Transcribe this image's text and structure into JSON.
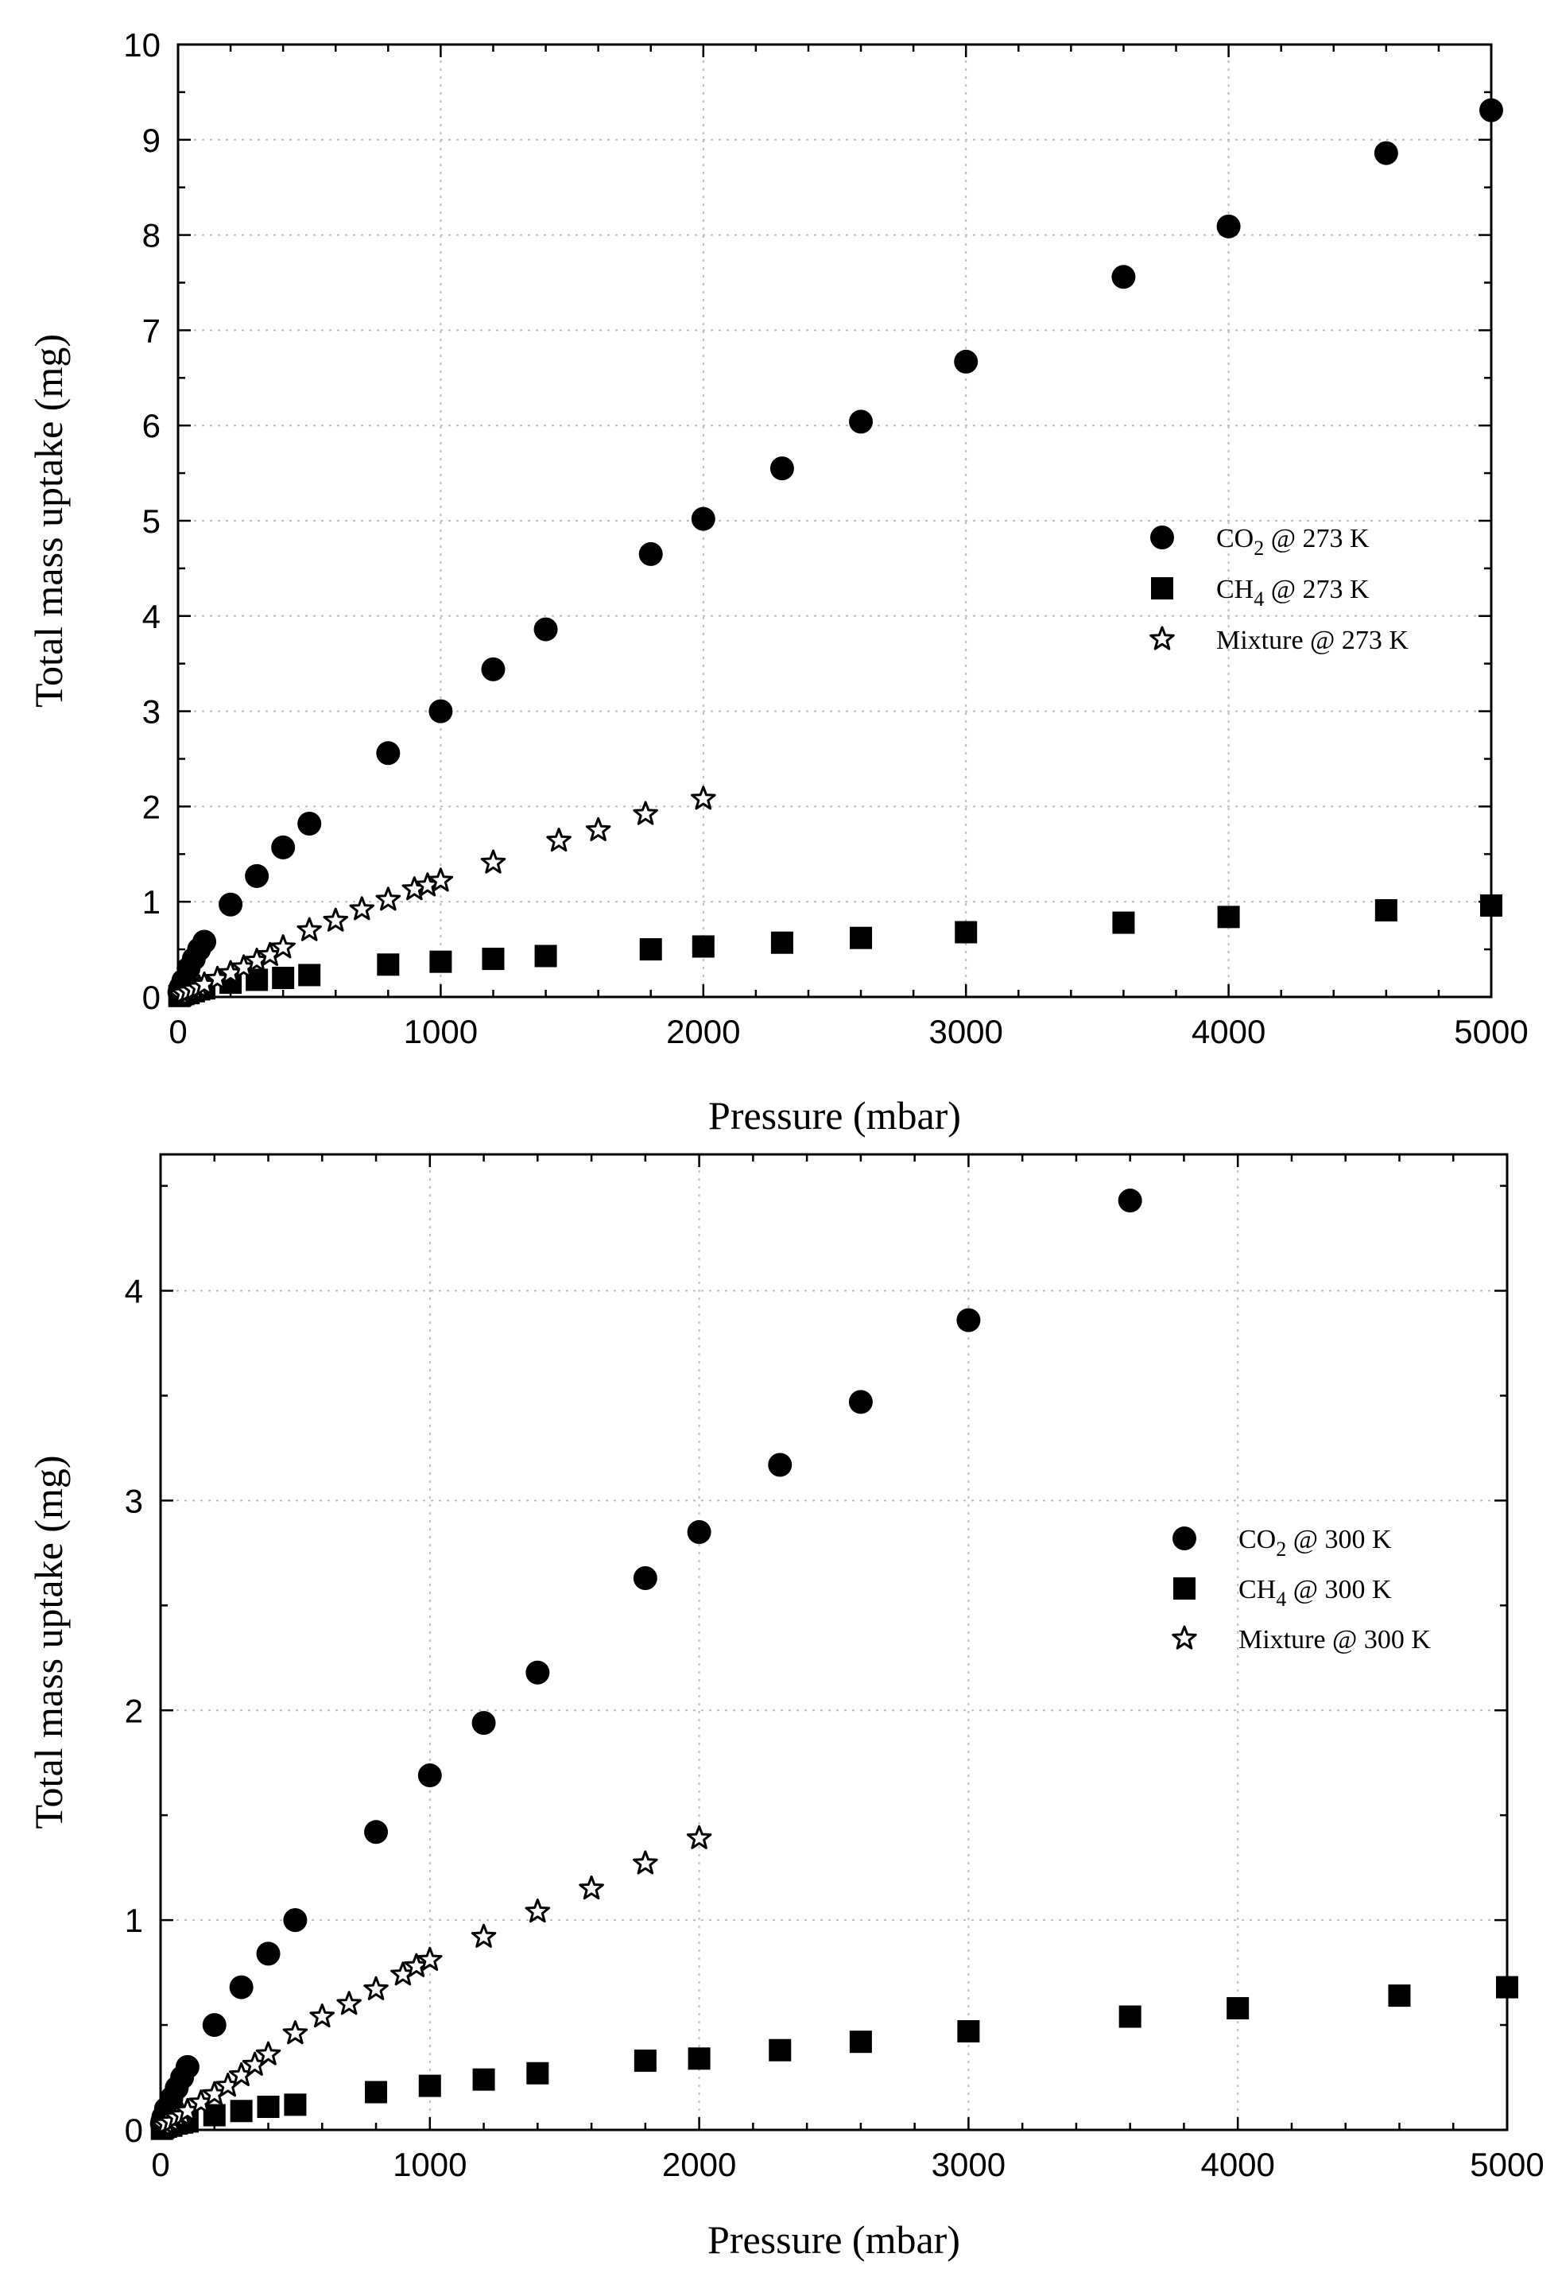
{
  "chart_data": [
    {
      "type": "scatter",
      "xlabel": "Pressure (mbar)",
      "ylabel": "Total mass uptake (mg)",
      "xlim": [
        0,
        5000
      ],
      "ylim": [
        0,
        10
      ],
      "xticks": [
        0,
        1000,
        2000,
        3000,
        4000,
        5000
      ],
      "yticks": [
        0,
        1,
        2,
        3,
        4,
        5,
        6,
        7,
        8,
        9,
        10
      ],
      "grid": true,
      "legend_position": "right-middle",
      "series": [
        {
          "name": "CO2 @ 273 K",
          "label_main": "CO",
          "label_sub": "2",
          "label_rest": " @ 273 K",
          "marker": "circle",
          "x": [
            5,
            10,
            20,
            40,
            60,
            80,
            100,
            200,
            300,
            400,
            500,
            800,
            1000,
            1200,
            1400,
            1800,
            2000,
            2300,
            2600,
            3000,
            3600,
            4000,
            4600,
            5000
          ],
          "y": [
            0.05,
            0.1,
            0.17,
            0.3,
            0.4,
            0.5,
            0.58,
            0.97,
            1.27,
            1.57,
            1.82,
            2.56,
            3.0,
            3.44,
            3.86,
            4.65,
            5.02,
            5.55,
            6.04,
            6.67,
            7.56,
            8.09,
            8.86,
            9.31
          ]
        },
        {
          "name": "CH4 @ 273 K",
          "label_main": "CH",
          "label_sub": "4",
          "label_rest": " @ 273 K",
          "marker": "square",
          "x": [
            5,
            10,
            20,
            40,
            60,
            80,
            100,
            200,
            300,
            400,
            500,
            800,
            1000,
            1200,
            1400,
            1800,
            2000,
            2300,
            2600,
            3000,
            3600,
            4000,
            4600,
            5000
          ],
          "y": [
            0.01,
            0.02,
            0.03,
            0.04,
            0.06,
            0.08,
            0.09,
            0.15,
            0.18,
            0.2,
            0.23,
            0.34,
            0.37,
            0.4,
            0.43,
            0.5,
            0.53,
            0.57,
            0.62,
            0.68,
            0.78,
            0.84,
            0.91,
            0.96
          ]
        },
        {
          "name": "Mixture @ 273 K",
          "label_main": "Mixture",
          "label_sub": "",
          "label_rest": " @ 273 K",
          "marker": "star",
          "x": [
            10,
            20,
            40,
            60,
            80,
            100,
            150,
            200,
            250,
            300,
            350,
            400,
            500,
            600,
            700,
            800,
            900,
            950,
            1000,
            1200,
            1450,
            1600,
            1780,
            2000
          ],
          "y": [
            0.02,
            0.04,
            0.06,
            0.08,
            0.1,
            0.13,
            0.19,
            0.25,
            0.31,
            0.38,
            0.44,
            0.52,
            0.7,
            0.8,
            0.92,
            1.02,
            1.13,
            1.17,
            1.22,
            1.41,
            1.64,
            1.75,
            1.92,
            2.08
          ]
        }
      ]
    },
    {
      "type": "scatter",
      "xlabel": "Pressure (mbar)",
      "ylabel": "Total mass uptake (mg)",
      "xlim": [
        0,
        5000
      ],
      "ylim": [
        0,
        4.65
      ],
      "xticks": [
        0,
        1000,
        2000,
        3000,
        4000,
        5000
      ],
      "yticks": [
        0,
        1,
        2,
        3,
        4
      ],
      "grid": true,
      "legend_position": "right-middle",
      "series": [
        {
          "name": "CO2 @ 300 K",
          "label_main": "CO",
          "label_sub": "2",
          "label_rest": " @ 300 K",
          "marker": "circle",
          "x": [
            5,
            10,
            20,
            40,
            60,
            80,
            100,
            200,
            300,
            400,
            500,
            800,
            1000,
            1200,
            1400,
            1800,
            2000,
            2300,
            2600,
            3000,
            3600
          ],
          "y": [
            0.03,
            0.06,
            0.1,
            0.15,
            0.2,
            0.25,
            0.3,
            0.5,
            0.68,
            0.84,
            1.0,
            1.42,
            1.69,
            1.94,
            2.18,
            2.63,
            2.85,
            3.17,
            3.47,
            3.86,
            4.43
          ]
        },
        {
          "name": "CH4 @ 300 K",
          "label_main": "CH",
          "label_sub": "4",
          "label_rest": " @ 300 K",
          "marker": "square",
          "x": [
            5,
            10,
            20,
            40,
            60,
            80,
            100,
            200,
            300,
            400,
            500,
            800,
            1000,
            1200,
            1400,
            1800,
            2000,
            2300,
            2600,
            3000,
            3600,
            4000,
            4600,
            5000
          ],
          "y": [
            0.005,
            0.01,
            0.015,
            0.02,
            0.03,
            0.035,
            0.04,
            0.07,
            0.09,
            0.11,
            0.12,
            0.18,
            0.21,
            0.24,
            0.27,
            0.33,
            0.34,
            0.38,
            0.42,
            0.47,
            0.54,
            0.58,
            0.64,
            0.68
          ]
        },
        {
          "name": "Mixture @ 300 K",
          "label_main": "Mixture",
          "label_sub": "",
          "label_rest": " @ 300 K",
          "marker": "star",
          "x": [
            10,
            20,
            40,
            60,
            80,
            100,
            150,
            200,
            250,
            300,
            350,
            400,
            500,
            600,
            700,
            800,
            900,
            950,
            1000,
            1200,
            1400,
            1600,
            1800,
            2000
          ],
          "y": [
            0.02,
            0.03,
            0.04,
            0.06,
            0.07,
            0.09,
            0.13,
            0.17,
            0.21,
            0.26,
            0.31,
            0.36,
            0.46,
            0.54,
            0.6,
            0.67,
            0.74,
            0.78,
            0.81,
            0.92,
            1.04,
            1.15,
            1.27,
            1.39
          ]
        }
      ]
    }
  ]
}
